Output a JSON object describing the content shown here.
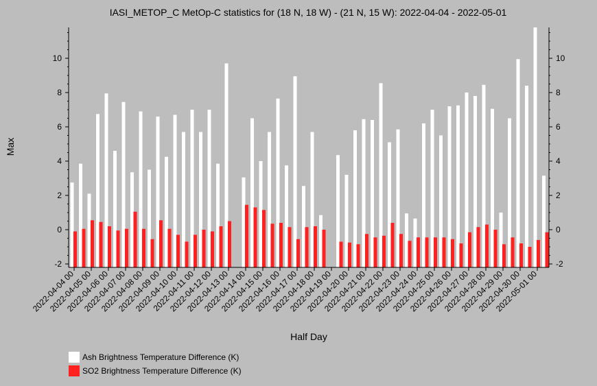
{
  "chart_data": {
    "type": "bar",
    "title": "IASI_METOP_C MetOp-C statistics for (18 N, 18 W) - (21 N, 15 W): 2022-04-04 - 2022-05-01",
    "xlabel": "Half Day",
    "ylabel": "Max",
    "ylim": [
      -2.2,
      11.8
    ],
    "yticks": [
      -2,
      0,
      2,
      4,
      6,
      8,
      10
    ],
    "grid": false,
    "legend_position": "bottom-left",
    "categories": [
      "2022-04-04 00",
      "2022-04-04 12",
      "2022-04-05 00",
      "2022-04-05 12",
      "2022-04-06 00",
      "2022-04-06 12",
      "2022-04-07 00",
      "2022-04-07 12",
      "2022-04-08 00",
      "2022-04-08 12",
      "2022-04-09 00",
      "2022-04-09 12",
      "2022-04-10 00",
      "2022-04-10 12",
      "2022-04-11 00",
      "2022-04-11 12",
      "2022-04-12 00",
      "2022-04-12 12",
      "2022-04-13 00",
      "2022-04-13 12",
      "2022-04-14 00",
      "2022-04-14 12",
      "2022-04-15 00",
      "2022-04-15 12",
      "2022-04-16 00",
      "2022-04-16 12",
      "2022-04-17 00",
      "2022-04-17 12",
      "2022-04-18 00",
      "2022-04-18 12",
      "2022-04-19 00",
      "2022-04-19 12",
      "2022-04-20 00",
      "2022-04-20 12",
      "2022-04-21 00",
      "2022-04-21 12",
      "2022-04-22 00",
      "2022-04-22 12",
      "2022-04-23 00",
      "2022-04-23 12",
      "2022-04-24 00",
      "2022-04-24 12",
      "2022-04-25 00",
      "2022-04-25 12",
      "2022-04-26 00",
      "2022-04-26 12",
      "2022-04-27 00",
      "2022-04-27 12",
      "2022-04-28 00",
      "2022-04-28 12",
      "2022-04-29 00",
      "2022-04-29 12",
      "2022-04-30 00",
      "2022-04-30 12",
      "2022-05-01 00",
      "2022-05-01 12"
    ],
    "xtick_labels": [
      "2022-04-04 00",
      "2022-04-05 00",
      "2022-04-06 00",
      "2022-04-07 00",
      "2022-04-08 00",
      "2022-04-09 00",
      "2022-04-10 00",
      "2022-04-11 00",
      "2022-04-12 00",
      "2022-04-13 00",
      "2022-04-14 00",
      "2022-04-15 00",
      "2022-04-16 00",
      "2022-04-17 00",
      "2022-04-18 00",
      "2022-04-19 00",
      "2022-04-20 00",
      "2022-04-21 00",
      "2022-04-22 00",
      "2022-04-23 00",
      "2022-04-24 00",
      "2022-04-25 00",
      "2022-04-26 00",
      "2022-04-27 00",
      "2022-04-28 00",
      "2022-04-29 00",
      "2022-04-30 00",
      "2022-05-01 00"
    ],
    "series": [
      {
        "name": "Ash Brightness Temperature Difference (K)",
        "color": "#ffffff",
        "values": [
          2.75,
          3.85,
          2.1,
          6.75,
          7.95,
          4.6,
          7.45,
          3.35,
          6.9,
          3.5,
          6.6,
          4.25,
          6.7,
          5.7,
          7.0,
          5.7,
          7.0,
          3.85,
          9.7,
          null,
          3.05,
          6.5,
          4.0,
          5.7,
          7.65,
          3.75,
          8.95,
          2.55,
          5.7,
          0.85,
          null,
          4.35,
          3.2,
          5.8,
          6.45,
          6.4,
          8.55,
          5.1,
          5.85,
          0.95,
          0.65,
          6.2,
          7.0,
          5.5,
          7.2,
          7.25,
          8.0,
          7.8,
          8.45,
          7.05,
          1.0,
          6.5,
          9.95,
          8.4,
          11.8,
          3.15
        ]
      },
      {
        "name": "SO2 Brightness Temperature Difference (K)",
        "color": "#ff2020",
        "values": [
          -0.1,
          0.05,
          0.55,
          0.45,
          0.2,
          -0.05,
          0.05,
          1.05,
          0.05,
          -0.55,
          0.55,
          0.05,
          -0.3,
          -0.7,
          -0.3,
          0.0,
          -0.1,
          0.2,
          0.5,
          null,
          1.45,
          1.3,
          1.15,
          0.35,
          0.4,
          0.15,
          -0.55,
          0.15,
          0.2,
          0.0,
          null,
          -0.7,
          -0.75,
          -0.85,
          -0.25,
          -0.45,
          -0.35,
          0.4,
          -0.25,
          -0.65,
          -0.45,
          -0.45,
          -0.45,
          -0.45,
          -0.55,
          -0.8,
          -0.15,
          0.15,
          0.3,
          0.0,
          -0.85,
          -0.45,
          -0.8,
          -1.0,
          -0.6,
          -0.15
        ]
      }
    ]
  }
}
